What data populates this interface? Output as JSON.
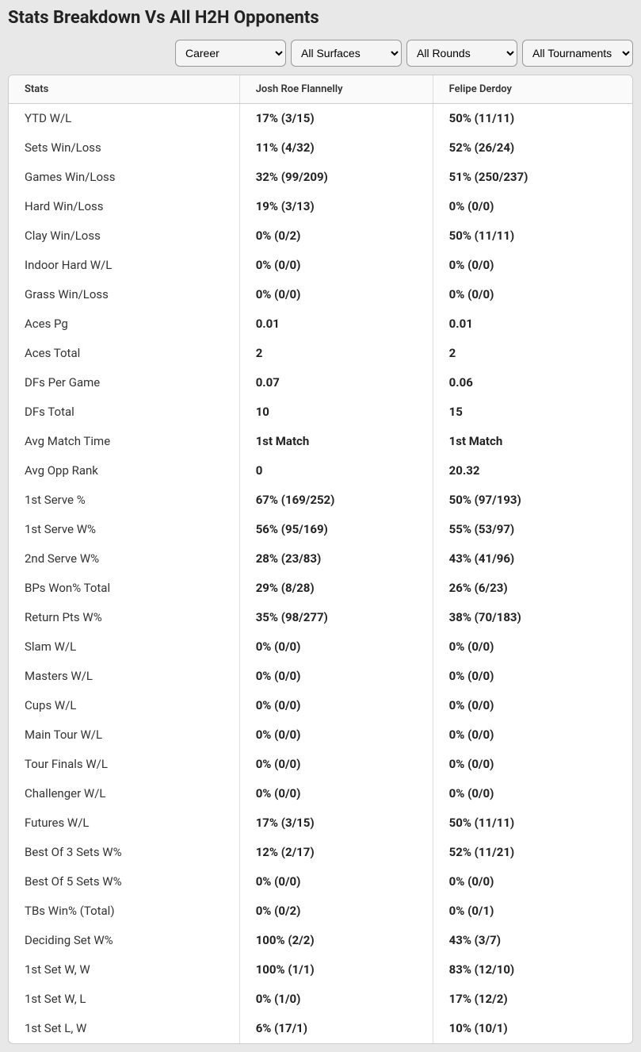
{
  "title": "Stats Breakdown Vs All H2H Opponents",
  "filters": {
    "career": {
      "selected": "Career",
      "options": [
        "Career"
      ]
    },
    "surfaces": {
      "selected": "All Surfaces",
      "options": [
        "All Surfaces"
      ]
    },
    "rounds": {
      "selected": "All Rounds",
      "options": [
        "All Rounds"
      ]
    },
    "tournaments": {
      "selected": "All Tournaments",
      "options": [
        "All Tournaments"
      ]
    }
  },
  "columns": {
    "stats": "Stats",
    "p1": "Josh Roe Flannelly",
    "p2": "Felipe Derdoy"
  },
  "rows": [
    {
      "stat": "YTD W/L",
      "p1": "17% (3/15)",
      "p2": "50% (11/11)"
    },
    {
      "stat": "Sets Win/Loss",
      "p1": "11% (4/32)",
      "p2": "52% (26/24)"
    },
    {
      "stat": "Games Win/Loss",
      "p1": "32% (99/209)",
      "p2": "51% (250/237)"
    },
    {
      "stat": "Hard Win/Loss",
      "p1": "19% (3/13)",
      "p2": "0% (0/0)"
    },
    {
      "stat": "Clay Win/Loss",
      "p1": "0% (0/2)",
      "p2": "50% (11/11)"
    },
    {
      "stat": "Indoor Hard W/L",
      "p1": "0% (0/0)",
      "p2": "0% (0/0)"
    },
    {
      "stat": "Grass Win/Loss",
      "p1": "0% (0/0)",
      "p2": "0% (0/0)"
    },
    {
      "stat": "Aces Pg",
      "p1": "0.01",
      "p2": "0.01"
    },
    {
      "stat": "Aces Total",
      "p1": "2",
      "p2": "2"
    },
    {
      "stat": "DFs Per Game",
      "p1": "0.07",
      "p2": "0.06"
    },
    {
      "stat": "DFs Total",
      "p1": "10",
      "p2": "15"
    },
    {
      "stat": "Avg Match Time",
      "p1": "1st Match",
      "p2": "1st Match"
    },
    {
      "stat": "Avg Opp Rank",
      "p1": "0",
      "p2": "20.32"
    },
    {
      "stat": "1st Serve %",
      "p1": "67% (169/252)",
      "p2": "50% (97/193)"
    },
    {
      "stat": "1st Serve W%",
      "p1": "56% (95/169)",
      "p2": "55% (53/97)"
    },
    {
      "stat": "2nd Serve W%",
      "p1": "28% (23/83)",
      "p2": "43% (41/96)"
    },
    {
      "stat": "BPs Won% Total",
      "p1": "29% (8/28)",
      "p2": "26% (6/23)"
    },
    {
      "stat": "Return Pts W%",
      "p1": "35% (98/277)",
      "p2": "38% (70/183)"
    },
    {
      "stat": "Slam W/L",
      "p1": "0% (0/0)",
      "p2": "0% (0/0)"
    },
    {
      "stat": "Masters W/L",
      "p1": "0% (0/0)",
      "p2": "0% (0/0)"
    },
    {
      "stat": "Cups W/L",
      "p1": "0% (0/0)",
      "p2": "0% (0/0)"
    },
    {
      "stat": "Main Tour W/L",
      "p1": "0% (0/0)",
      "p2": "0% (0/0)"
    },
    {
      "stat": "Tour Finals W/L",
      "p1": "0% (0/0)",
      "p2": "0% (0/0)"
    },
    {
      "stat": "Challenger W/L",
      "p1": "0% (0/0)",
      "p2": "0% (0/0)"
    },
    {
      "stat": "Futures W/L",
      "p1": "17% (3/15)",
      "p2": "50% (11/11)"
    },
    {
      "stat": "Best Of 3 Sets W%",
      "p1": "12% (2/17)",
      "p2": "52% (11/21)"
    },
    {
      "stat": "Best Of 5 Sets W%",
      "p1": "0% (0/0)",
      "p2": "0% (0/0)"
    },
    {
      "stat": "TBs Win% (Total)",
      "p1": "0% (0/2)",
      "p2": "0% (0/1)"
    },
    {
      "stat": "Deciding Set W%",
      "p1": "100% (2/2)",
      "p2": "43% (3/7)"
    },
    {
      "stat": "1st Set W, W",
      "p1": "100% (1/1)",
      "p2": "83% (12/10)"
    },
    {
      "stat": "1st Set W, L",
      "p1": "0% (1/0)",
      "p2": "17% (12/2)"
    },
    {
      "stat": "1st Set L, W",
      "p1": "6% (17/1)",
      "p2": "10% (10/1)"
    }
  ]
}
